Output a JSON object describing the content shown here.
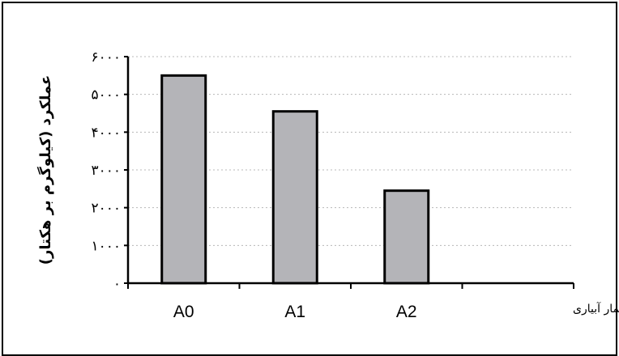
{
  "chart_data": {
    "type": "bar",
    "categories": [
      "A0",
      "A1",
      "A2",
      ""
    ],
    "values": [
      5500,
      4550,
      2450,
      null
    ],
    "ylim": [
      0,
      6000
    ],
    "yticks": [
      0,
      1000,
      2000,
      3000,
      4000,
      5000,
      6000
    ],
    "ytick_labels": [
      "۰",
      "۱۰۰۰",
      "۲۰۰۰",
      "۳۰۰۰",
      "۴۰۰۰",
      "۵۰۰۰",
      "۶۰۰۰"
    ],
    "xlabel": "تیمار آبیاری",
    "ylabel": "عملکرد (کیلوگرم بر هکتار)",
    "grid": true,
    "bar_color": "#b4b4b8",
    "edge_color": "#000000",
    "grid_color": "#b8b8b8"
  }
}
